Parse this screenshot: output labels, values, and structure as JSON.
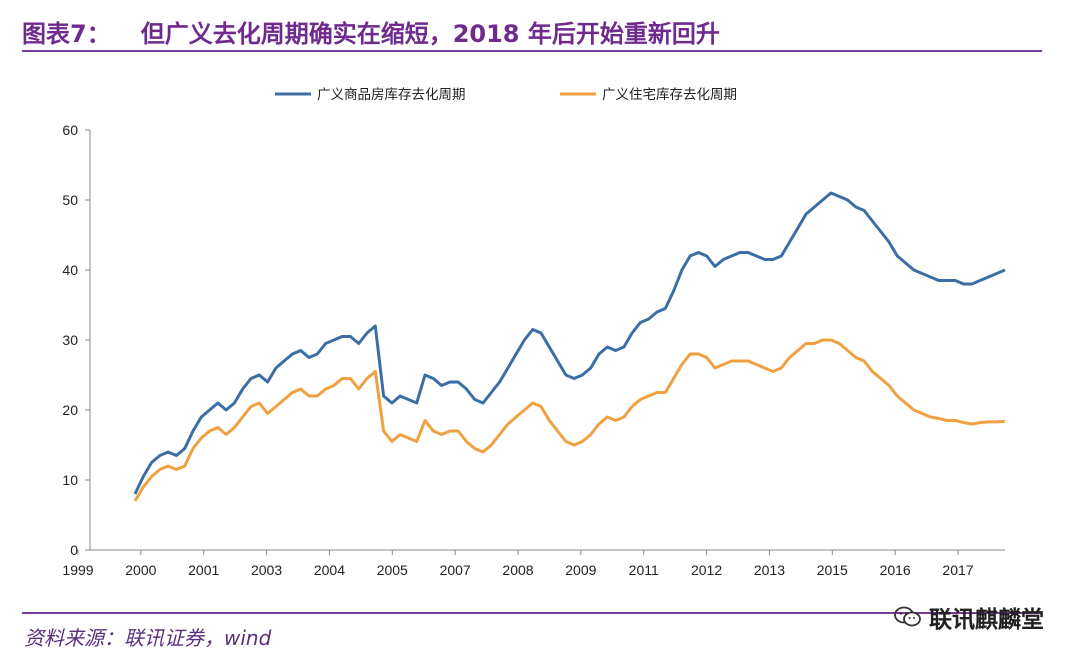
{
  "header": {
    "figure_label": "图表7：",
    "title": "但广义去化周期确实在缩短，2018 年后开始重新回升"
  },
  "footer": {
    "source": "资料来源：联讯证券，wind",
    "watermark": "联讯麒麟堂",
    "watermark_icon": "wechat-icon"
  },
  "chart_data": {
    "type": "line",
    "ylim": [
      0,
      60
    ],
    "yticks": [
      0,
      10,
      20,
      30,
      40,
      50,
      60
    ],
    "xtick_labels": [
      "1999",
      "2000",
      "2001",
      "2003",
      "2004",
      "2005",
      "2007",
      "2008",
      "2009",
      "2011",
      "2012",
      "2013",
      "2015",
      "2016",
      "2017"
    ],
    "grid": false,
    "legend_position": "top",
    "series": [
      {
        "name": "广义商品房库存去化周期",
        "color": "#3a6ea5",
        "values": [
          8.0,
          10.5,
          12.5,
          13.5,
          14.0,
          13.5,
          14.5,
          17.0,
          19.0,
          20.0,
          21.0,
          20.0,
          21.0,
          23.0,
          24.5,
          25.0,
          24.0,
          26.0,
          27.0,
          28.0,
          28.5,
          27.5,
          28.0,
          29.5,
          30.0,
          30.5,
          30.5,
          29.5,
          31.0,
          32.0,
          22.0,
          21.0,
          22.0,
          21.5,
          21.0,
          25.0,
          24.5,
          23.5,
          24.0,
          24.0,
          23.0,
          21.5,
          21.0,
          22.5,
          24.0,
          26.0,
          28.0,
          30.0,
          31.5,
          31.0,
          29.0,
          27.0,
          25.0,
          24.5,
          25.0,
          26.0,
          28.0,
          29.0,
          28.5,
          29.0,
          31.0,
          32.5,
          33.0,
          34.0,
          34.5,
          37.0,
          40.0,
          42.0,
          42.5,
          42.0,
          40.5,
          41.5,
          42.0,
          42.5,
          42.5,
          42.0,
          41.5,
          41.5,
          42.0,
          44.0,
          46.0,
          48.0,
          49.0,
          50.0,
          51.0,
          50.5,
          50.0,
          49.0,
          48.5,
          47.0,
          45.5,
          44.0,
          42.0,
          41.0,
          40.0,
          39.5,
          39.0,
          38.5,
          38.5,
          38.5,
          38.0,
          38.0,
          38.5,
          39.0,
          39.5,
          40.0
        ]
      },
      {
        "name": "广义住宅库存去化周期",
        "color": "#f0a040",
        "values": [
          7.0,
          9.0,
          10.5,
          11.5,
          12.0,
          11.5,
          12.0,
          14.5,
          16.0,
          17.0,
          17.5,
          16.5,
          17.5,
          19.0,
          20.5,
          21.0,
          19.5,
          20.5,
          21.5,
          22.5,
          23.0,
          22.0,
          22.0,
          23.0,
          23.5,
          24.5,
          24.5,
          23.0,
          24.5,
          25.5,
          17.0,
          15.5,
          16.5,
          16.0,
          15.5,
          18.5,
          17.0,
          16.5,
          17.0,
          17.0,
          15.5,
          14.5,
          14.0,
          15.0,
          16.5,
          18.0,
          19.0,
          20.0,
          21.0,
          20.5,
          18.5,
          17.0,
          15.5,
          15.0,
          15.5,
          16.5,
          18.0,
          19.0,
          18.5,
          19.0,
          20.5,
          21.5,
          22.0,
          22.5,
          22.5,
          24.5,
          26.5,
          28.0,
          28.0,
          27.5,
          26.0,
          26.5,
          27.0,
          27.0,
          27.0,
          26.5,
          26.0,
          25.5,
          26.0,
          27.5,
          28.5,
          29.5,
          29.5,
          30.0,
          30.0,
          29.5,
          28.5,
          27.5,
          27.0,
          25.5,
          24.5,
          23.5,
          22.0,
          21.0,
          20.0,
          19.5,
          19.0,
          18.8,
          18.5,
          18.5,
          18.2,
          18.0,
          18.2,
          18.3,
          18.3,
          18.4
        ]
      }
    ]
  }
}
